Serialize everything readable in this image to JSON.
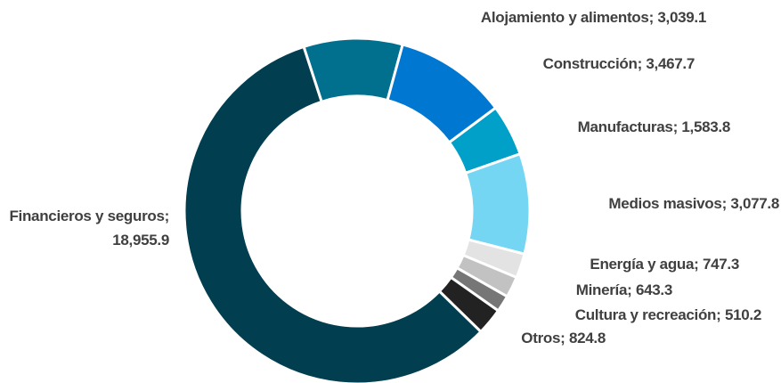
{
  "chart_data": {
    "type": "donut",
    "categories": [
      "Alojamiento y alimentos",
      "Construcción",
      "Manufacturas",
      "Medios masivos",
      "Energía y agua",
      "Minería",
      "Cultura y recreación",
      "Otros",
      "Financieros y seguros"
    ],
    "values": [
      3039.1,
      3467.7,
      1583.8,
      3077.8,
      747.3,
      643.3,
      510.2,
      824.8,
      18955.9
    ],
    "value_labels": [
      "3,039.1",
      "3,467.7",
      "1,583.8",
      "3,077.8",
      "747.3",
      "643.3",
      "510.2",
      "824.8",
      "18,955.9"
    ],
    "label_separator": ";",
    "colors": [
      "#00708e",
      "#0078d2",
      "#00a0c8",
      "#74d6f2",
      "#e3e3e3",
      "#c2c2c2",
      "#767676",
      "#222222",
      "#003e50"
    ]
  }
}
